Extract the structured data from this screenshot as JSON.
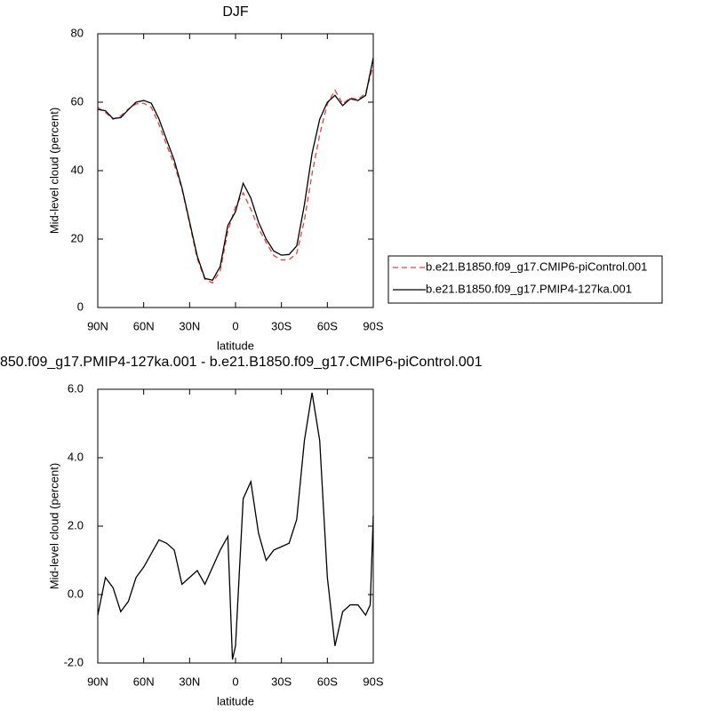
{
  "chart_data": [
    {
      "type": "line",
      "title": "DJF",
      "xlabel": "latitude",
      "ylabel": "Mid-level cloud (percent)",
      "x": [
        90,
        85,
        80,
        75,
        70,
        65,
        60,
        55,
        50,
        45,
        40,
        35,
        30,
        25,
        20,
        15,
        10,
        5,
        0,
        -5,
        -10,
        -15,
        -20,
        -25,
        -30,
        -35,
        -40,
        -45,
        -50,
        -55,
        -60,
        -65,
        -70,
        -75,
        -80,
        -85,
        -90
      ],
      "xlim": [
        90,
        -90
      ],
      "xticks": [
        {
          "value": 90,
          "label": "90N"
        },
        {
          "value": 60,
          "label": "60N"
        },
        {
          "value": 30,
          "label": "30N"
        },
        0,
        {
          "value": -30,
          "label": "30S"
        },
        {
          "value": -60,
          "label": "60S"
        },
        {
          "value": -90,
          "label": "90S"
        }
      ],
      "ylim": [
        0,
        80
      ],
      "yticks": [
        0,
        20,
        40,
        60,
        80
      ],
      "legend": "right",
      "series": [
        {
          "name": "b.e21.B1850.f09_g17.CMIP6-piControl.001",
          "color": "#e8413c",
          "dashed": true,
          "values": [
            58.5,
            57,
            55,
            56,
            58,
            59.5,
            59.7,
            58.5,
            53.5,
            47.5,
            41.7,
            34.7,
            24.5,
            14.3,
            8.2,
            7.2,
            10.7,
            22.3,
            29.5,
            33.5,
            28.7,
            23.2,
            19,
            15.2,
            13.9,
            14,
            15.8,
            25.5,
            39.1,
            50.5,
            59.5,
            63.5,
            59.5,
            61.3,
            60.8,
            62.6,
            70.7
          ]
        },
        {
          "name": "b.e21.B1850.f09_g17.PMIP4-127ka.001",
          "color": "#000000",
          "dashed": false,
          "values": [
            57.9,
            57.5,
            55.2,
            55.5,
            57.8,
            60,
            60.5,
            59.7,
            55.1,
            49,
            43,
            35,
            25,
            15,
            8.5,
            8,
            12,
            24,
            28,
            36.3,
            32,
            25,
            20,
            16.5,
            15.3,
            15.5,
            18,
            30,
            45,
            55,
            60,
            62,
            59,
            61,
            60.5,
            62,
            73
          ]
        }
      ]
    },
    {
      "type": "line",
      "title": "850.f09_g17.PMIP4-127ka.001 - b.e21.B1850.f09_g17.CMIP6-piControl.001",
      "xlabel": "latitude",
      "ylabel": "Mid-level cloud (percent)",
      "x": [
        90,
        85,
        80,
        75,
        70,
        65,
        60,
        55,
        50,
        45,
        40,
        35,
        30,
        25,
        20,
        15,
        10,
        5,
        2,
        0,
        -5,
        -10,
        -15,
        -20,
        -25,
        -30,
        -35,
        -40,
        -45,
        -50,
        -55,
        -60,
        -65,
        -70,
        -75,
        -80,
        -85,
        -88,
        -90
      ],
      "xlim": [
        90,
        -90
      ],
      "xticks": [
        {
          "value": 90,
          "label": "90N"
        },
        {
          "value": 60,
          "label": "60N"
        },
        {
          "value": 30,
          "label": "30N"
        },
        0,
        {
          "value": -30,
          "label": "30S"
        },
        {
          "value": -60,
          "label": "60S"
        },
        {
          "value": -90,
          "label": "90S"
        }
      ],
      "ylim": [
        -2,
        6
      ],
      "yticks": [
        {
          "value": -2,
          "label": "-2.0"
        },
        {
          "value": 0,
          "label": "0.0"
        },
        {
          "value": 2,
          "label": "2.0"
        },
        {
          "value": 4,
          "label": "4.0"
        },
        {
          "value": 6,
          "label": "6.0"
        }
      ],
      "series": [
        {
          "color": "#000000",
          "dashed": false,
          "values": [
            -0.6,
            0.5,
            0.2,
            -0.5,
            -0.2,
            0.5,
            0.8,
            1.2,
            1.6,
            1.5,
            1.3,
            0.3,
            0.5,
            0.7,
            0.3,
            0.8,
            1.3,
            1.7,
            -1.9,
            -1.5,
            2.8,
            3.3,
            1.8,
            1.0,
            1.3,
            1.4,
            1.5,
            2.2,
            4.5,
            5.9,
            4.5,
            0.5,
            -1.5,
            -0.5,
            -0.3,
            -0.3,
            -0.6,
            -0.3,
            2.3
          ]
        }
      ]
    }
  ]
}
